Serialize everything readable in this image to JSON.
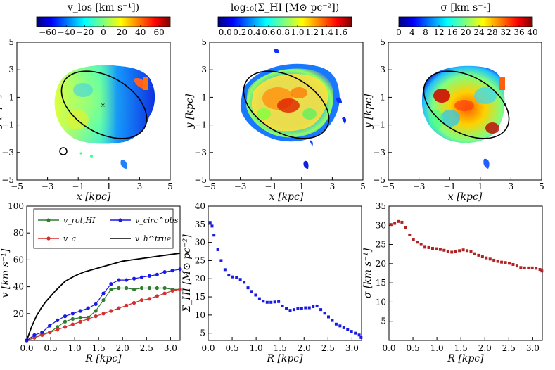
{
  "colorbars": [
    {
      "title": "v_los [km s⁻¹])",
      "ticks": [
        "−60",
        "−40",
        "−20",
        "0",
        "20",
        "40",
        "60"
      ],
      "range": [
        -72,
        72
      ],
      "colormap": "jet"
    },
    {
      "title": "log₁₀(Σ_HI [M⊙ pc⁻²])",
      "ticks": [
        "0.0",
        "0.2",
        "0.4",
        "0.6",
        "0.8",
        "1.0",
        "1.2",
        "1.4",
        "1.6"
      ],
      "range": [
        -0.1,
        1.75
      ],
      "colormap": "jet"
    },
    {
      "title": "σ [km s⁻¹]",
      "ticks": [
        "0",
        "4",
        "8",
        "12",
        "16",
        "20",
        "24",
        "28",
        "32",
        "36",
        "40"
      ],
      "range": [
        0,
        40
      ],
      "colormap": "jet"
    }
  ],
  "maps": {
    "xlabel": "x [kpc]",
    "ylabel": "y [kpc]",
    "ticks": [
      "−5",
      "−3",
      "−1",
      "1",
      "3",
      "5"
    ],
    "range": [
      -5,
      5
    ]
  },
  "chart_data": [
    {
      "type": "line",
      "xlabel": "R [kpc]",
      "ylabel": "v [km s⁻¹]",
      "xlim": [
        0,
        3.2
      ],
      "ylim": [
        0,
        100
      ],
      "xticks": [
        "0.0",
        "0.5",
        "1.0",
        "1.5",
        "2.0",
        "2.5",
        "3.0"
      ],
      "yticks": [
        "20",
        "40",
        "60",
        "80",
        "100"
      ],
      "legend": "top",
      "series": [
        {
          "name": "v_rot,HI",
          "color": "#2e7d32",
          "marker": "circle",
          "x": [
            0,
            0.16,
            0.32,
            0.48,
            0.64,
            0.8,
            0.96,
            1.12,
            1.28,
            1.44,
            1.6,
            1.76,
            1.92,
            2.08,
            2.24,
            2.4,
            2.56,
            2.72,
            2.88,
            3.04,
            3.2
          ],
          "y": [
            0,
            2,
            5,
            6,
            10,
            14,
            16,
            17,
            17,
            22,
            30,
            38,
            39,
            39,
            38,
            39,
            39,
            39,
            39,
            38,
            38
          ]
        },
        {
          "name": "v_a",
          "color": "#d32f2f",
          "marker": "circle",
          "x": [
            0,
            0.16,
            0.32,
            0.48,
            0.64,
            0.8,
            0.96,
            1.12,
            1.28,
            1.44,
            1.6,
            1.76,
            1.92,
            2.08,
            2.24,
            2.4,
            2.56,
            2.72,
            2.88,
            3.04,
            3.2
          ],
          "y": [
            0,
            2,
            4,
            6,
            8,
            10,
            12,
            14,
            16,
            18,
            20,
            22,
            24,
            26,
            28,
            30,
            31,
            33,
            35,
            37,
            38
          ]
        },
        {
          "name": "v_circ^obs",
          "color": "#1a1ae6",
          "marker": "circle",
          "x": [
            0,
            0.16,
            0.32,
            0.48,
            0.64,
            0.8,
            0.96,
            1.12,
            1.28,
            1.44,
            1.6,
            1.76,
            1.92,
            2.08,
            2.24,
            2.4,
            2.56,
            2.72,
            2.88,
            3.04,
            3.2
          ],
          "y": [
            0,
            4,
            6,
            11,
            15,
            18,
            20,
            22,
            24,
            27,
            35,
            42,
            45,
            45,
            46,
            47,
            48,
            49,
            51,
            52,
            53
          ]
        },
        {
          "name": "v_h^true",
          "color": "#000000",
          "marker": "none",
          "x": [
            0,
            0.1,
            0.2,
            0.3,
            0.4,
            0.5,
            0.6,
            0.8,
            1.0,
            1.2,
            1.4,
            1.6,
            1.8,
            2.0,
            2.2,
            2.4,
            2.6,
            2.8,
            3.0,
            3.2
          ],
          "y": [
            0,
            10,
            18,
            24,
            29,
            33,
            37,
            44,
            48,
            51,
            53,
            55,
            57,
            59,
            60,
            61,
            62,
            63,
            64,
            65
          ]
        }
      ]
    },
    {
      "type": "scatter",
      "xlabel": "R [kpc]",
      "ylabel": "Σ_HI [M⊙ pc⁻²]",
      "xlim": [
        0,
        3.2
      ],
      "ylim": [
        3,
        40
      ],
      "xticks": [
        "0.0",
        "0.5",
        "1.0",
        "1.5",
        "2.0",
        "2.5",
        "3.0"
      ],
      "yticks": [
        "5",
        "10",
        "15",
        "20",
        "25",
        "30",
        "35",
        "40"
      ],
      "color": "#1a1ae6",
      "x": [
        0.04,
        0.08,
        0.12,
        0.2,
        0.27,
        0.35,
        0.43,
        0.51,
        0.59,
        0.67,
        0.75,
        0.83,
        0.91,
        0.99,
        1.07,
        1.15,
        1.23,
        1.31,
        1.39,
        1.47,
        1.55,
        1.63,
        1.71,
        1.79,
        1.87,
        1.95,
        2.03,
        2.11,
        2.19,
        2.27,
        2.35,
        2.43,
        2.51,
        2.59,
        2.67,
        2.75,
        2.83,
        2.91,
        2.99,
        3.07,
        3.15,
        3.19
      ],
      "y": [
        35.5,
        34.5,
        32,
        28,
        25,
        22.5,
        21,
        20.5,
        20.3,
        19.8,
        19,
        17.5,
        16.5,
        15.5,
        14.5,
        13.8,
        13.5,
        13.5,
        13.6,
        13.7,
        12.5,
        11.8,
        11.3,
        11.5,
        11.8,
        11.9,
        12,
        12,
        12.3,
        12.5,
        11.5,
        10.5,
        9.5,
        8.5,
        7.5,
        7,
        6.5,
        6,
        5.5,
        5,
        4.5,
        3.8
      ]
    },
    {
      "type": "scatter",
      "xlabel": "R [kpc]",
      "ylabel": "σ [km s⁻¹]",
      "xlim": [
        0,
        3.2
      ],
      "ylim": [
        0,
        35
      ],
      "xticks": [
        "0.0",
        "0.5",
        "1.0",
        "1.5",
        "2.0",
        "2.5",
        "3.0"
      ],
      "yticks": [
        "5",
        "10",
        "15",
        "20",
        "25",
        "30",
        "35"
      ],
      "color": "#b22222",
      "x": [
        0.04,
        0.12,
        0.2,
        0.27,
        0.35,
        0.43,
        0.51,
        0.59,
        0.67,
        0.75,
        0.83,
        0.91,
        0.99,
        1.07,
        1.15,
        1.23,
        1.31,
        1.39,
        1.47,
        1.55,
        1.63,
        1.71,
        1.79,
        1.87,
        1.95,
        2.03,
        2.11,
        2.19,
        2.27,
        2.35,
        2.43,
        2.51,
        2.59,
        2.67,
        2.75,
        2.83,
        2.91,
        2.99,
        3.07,
        3.15,
        3.19
      ],
      "y": [
        30.2,
        30.5,
        31,
        30.8,
        29.5,
        27.5,
        26.3,
        25.6,
        25,
        24.3,
        24.2,
        24,
        23.9,
        23.7,
        23.5,
        23.2,
        23,
        23.2,
        23.4,
        23.6,
        23.4,
        23.1,
        22.6,
        22.2,
        21.8,
        21.5,
        21.2,
        20.9,
        20.6,
        20.4,
        20.3,
        20.1,
        19.8,
        19.4,
        19,
        18.9,
        18.9,
        18.9,
        18.8,
        18.5,
        18.1
      ]
    }
  ]
}
